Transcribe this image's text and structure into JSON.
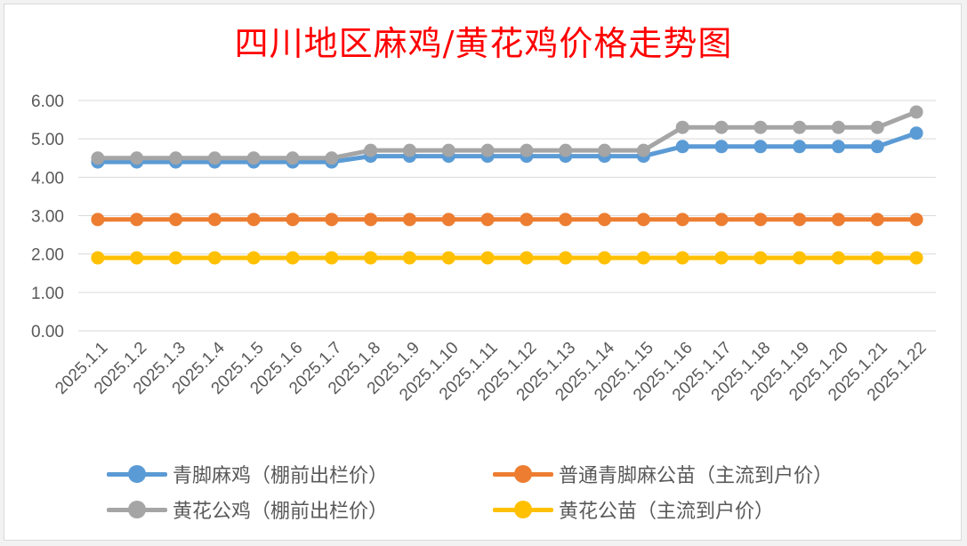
{
  "chart_data": {
    "type": "line",
    "title": "四川地区麻鸡/黄花鸡价格走势图",
    "categories": [
      "2025.1.1",
      "2025.1.2",
      "2025.1.3",
      "2025.1.4",
      "2025.1.5",
      "2025.1.6",
      "2025.1.7",
      "2025.1.8",
      "2025.1.9",
      "2025.1.10",
      "2025.1.11",
      "2025.1.12",
      "2025.1.13",
      "2025.1.14",
      "2025.1.15",
      "2025.1.16",
      "2025.1.17",
      "2025.1.18",
      "2025.1.19",
      "2025.1.20",
      "2025.1.21",
      "2025.1.22"
    ],
    "ylim": [
      0,
      6
    ],
    "yticks": [
      "0.00",
      "1.00",
      "2.00",
      "3.00",
      "4.00",
      "5.00",
      "6.00"
    ],
    "grid": true,
    "legend_position": "bottom",
    "series": [
      {
        "name": "青脚麻鸡（棚前出栏价）",
        "color": "#5b9bd5",
        "values": [
          4.4,
          4.4,
          4.4,
          4.4,
          4.4,
          4.4,
          4.4,
          4.55,
          4.55,
          4.55,
          4.55,
          4.55,
          4.55,
          4.55,
          4.55,
          4.8,
          4.8,
          4.8,
          4.8,
          4.8,
          4.8,
          5.15
        ]
      },
      {
        "name": "普通青脚麻公苗（主流到户价）",
        "color": "#ed7d31",
        "values": [
          2.9,
          2.9,
          2.9,
          2.9,
          2.9,
          2.9,
          2.9,
          2.9,
          2.9,
          2.9,
          2.9,
          2.9,
          2.9,
          2.9,
          2.9,
          2.9,
          2.9,
          2.9,
          2.9,
          2.9,
          2.9,
          2.9
        ]
      },
      {
        "name": "黄花公鸡（棚前出栏价）",
        "color": "#a5a5a5",
        "values": [
          4.5,
          4.5,
          4.5,
          4.5,
          4.5,
          4.5,
          4.5,
          4.7,
          4.7,
          4.7,
          4.7,
          4.7,
          4.7,
          4.7,
          4.7,
          5.3,
          5.3,
          5.3,
          5.3,
          5.3,
          5.3,
          5.7
        ]
      },
      {
        "name": "黄花公苗（主流到户价）",
        "color": "#ffc000",
        "values": [
          1.9,
          1.9,
          1.9,
          1.9,
          1.9,
          1.9,
          1.9,
          1.9,
          1.9,
          1.9,
          1.9,
          1.9,
          1.9,
          1.9,
          1.9,
          1.9,
          1.9,
          1.9,
          1.9,
          1.9,
          1.9,
          1.9
        ]
      }
    ]
  }
}
